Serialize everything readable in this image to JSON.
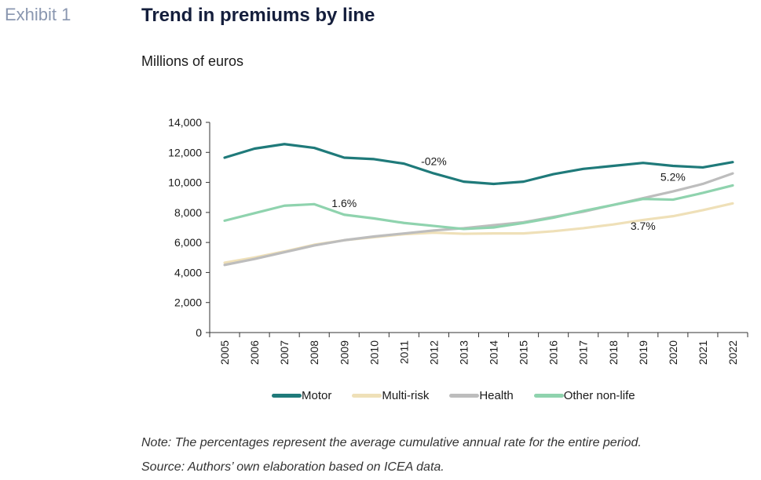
{
  "header": {
    "exhibit": "Exhibit 1",
    "title": "Trend in premiums by line",
    "subtitle": "Millions of euros"
  },
  "notes": {
    "note": "Note: The percentages represent the average cumulative annual rate for the entire period.",
    "source": "Source: Authors’ own elaboration based on ICEA data."
  },
  "chart_data": {
    "type": "line",
    "x": [
      "2005",
      "2006",
      "2007",
      "2008",
      "2009",
      "2010",
      "2011",
      "2012",
      "2013",
      "2014",
      "2015",
      "2016",
      "2017",
      "2018",
      "2019",
      "2020",
      "2021",
      "2022"
    ],
    "ylim": [
      0,
      14000
    ],
    "yticks": [
      0,
      2000,
      4000,
      6000,
      8000,
      10000,
      12000,
      14000
    ],
    "ytick_labels": [
      "0",
      "2,000",
      "4,000",
      "6,000",
      "8,000",
      "10,000",
      "12,000",
      "14,000"
    ],
    "grid": false,
    "legend_position": "bottom",
    "series": [
      {
        "name": "Motor",
        "color": "#1f7a7a",
        "values": [
          11650,
          12250,
          12550,
          12300,
          11650,
          11550,
          11250,
          10600,
          10050,
          9900,
          10050,
          10550,
          10900,
          11100,
          11300,
          11100,
          11000,
          11350
        ]
      },
      {
        "name": "Multi-risk",
        "color": "#efe0b8",
        "values": [
          4650,
          5000,
          5400,
          5850,
          6150,
          6350,
          6550,
          6650,
          6580,
          6600,
          6600,
          6750,
          6950,
          7200,
          7500,
          7750,
          8150,
          8600
        ]
      },
      {
        "name": "Health",
        "color": "#bdbdbd",
        "values": [
          4500,
          4900,
          5350,
          5800,
          6150,
          6400,
          6600,
          6800,
          6950,
          7150,
          7350,
          7700,
          8050,
          8500,
          8950,
          9400,
          9900,
          10600
        ]
      },
      {
        "name": "Other non-life",
        "color": "#8fd3ae",
        "values": [
          7450,
          7950,
          8450,
          8550,
          7850,
          7600,
          7300,
          7100,
          6900,
          7000,
          7300,
          7650,
          8100,
          8500,
          8900,
          8850,
          9300,
          9800
        ]
      }
    ],
    "annotations": [
      {
        "text": "-02%",
        "x": "2012",
        "y": 11150
      },
      {
        "text": "1.6%",
        "x": "2009",
        "y": 8350
      },
      {
        "text": "5.2%",
        "x": "2020",
        "y": 10100
      },
      {
        "text": "3.7%",
        "x": "2019",
        "y": 6850
      }
    ]
  }
}
